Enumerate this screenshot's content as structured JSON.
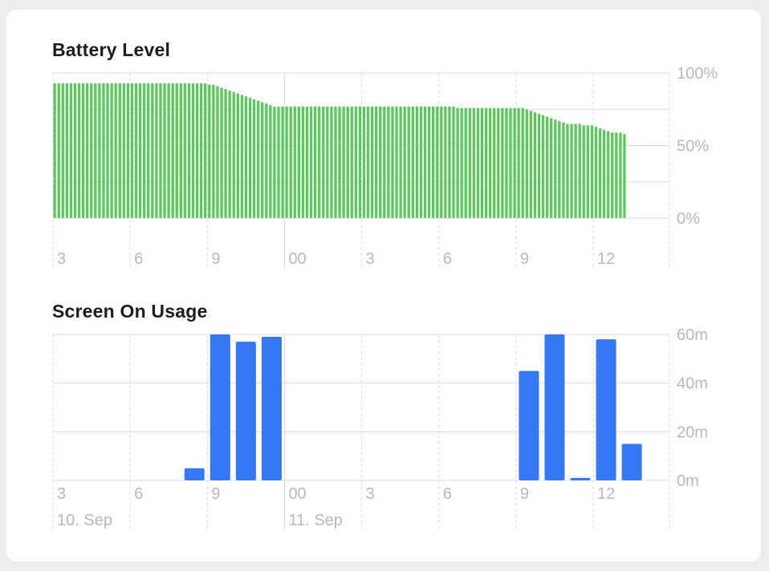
{
  "colors": {
    "battery_bar": "#5ac85a",
    "usage_bar": "#3478f6",
    "grid": "#dcdcdc",
    "label": "#b9b9bd",
    "title": "#1c1c1e"
  },
  "chart_data": [
    {
      "type": "bar",
      "title": "Battery Level",
      "x_tick_labels": [
        "3",
        "6",
        "9",
        "00",
        "3",
        "6",
        "9",
        "12"
      ],
      "y_tick_labels": [
        "100%",
        "50%",
        "0%"
      ],
      "ylim": [
        0,
        100
      ],
      "x_unit": "15-minute interval",
      "values": [
        93,
        93,
        93,
        93,
        93,
        93,
        93,
        93,
        93,
        93,
        93,
        93,
        93,
        93,
        93,
        93,
        93,
        93,
        93,
        93,
        93,
        93,
        93,
        93,
        93,
        93,
        93,
        93,
        93,
        93,
        93,
        93,
        93,
        93,
        93,
        93,
        93,
        93,
        92,
        92,
        91,
        90,
        89,
        88,
        87,
        86,
        85,
        84,
        83,
        82,
        81,
        80,
        79,
        78,
        77,
        77,
        77,
        77,
        77,
        77,
        77,
        77,
        77,
        77,
        77,
        77,
        77,
        77,
        77,
        77,
        77,
        77,
        77,
        77,
        77,
        77,
        77,
        77,
        77,
        77,
        77,
        77,
        77,
        77,
        77,
        77,
        77,
        77,
        77,
        77,
        77,
        77,
        77,
        77,
        77,
        77,
        77,
        77,
        77,
        76,
        76,
        76,
        76,
        76,
        76,
        76,
        76,
        76,
        76,
        76,
        76,
        76,
        76,
        76,
        76,
        76,
        75,
        74,
        73,
        72,
        71,
        70,
        69,
        68,
        67,
        66,
        65,
        65,
        65,
        65,
        64,
        64,
        64,
        63,
        62,
        61,
        60,
        59,
        59,
        59,
        58
      ],
      "grid": true,
      "y_axis_side": "right"
    },
    {
      "type": "bar",
      "title": "Screen On Usage",
      "x_tick_labels": [
        "3",
        "6",
        "9",
        "00",
        "3",
        "6",
        "9",
        "12"
      ],
      "date_labels": [
        {
          "label": "10. Sep",
          "at_hour": 0
        },
        {
          "label": "11. Sep",
          "at_hour": 9
        }
      ],
      "y_tick_labels": [
        "60m",
        "40m",
        "20m",
        "0m"
      ],
      "ylim": [
        0,
        60
      ],
      "x_unit": "hour",
      "hours_from_first_tick": [
        5,
        6,
        7,
        8,
        18,
        19,
        20,
        21,
        22
      ],
      "values": [
        5,
        60,
        57,
        59,
        45,
        60,
        1,
        58,
        15
      ],
      "grid": true,
      "y_axis_side": "right"
    }
  ]
}
